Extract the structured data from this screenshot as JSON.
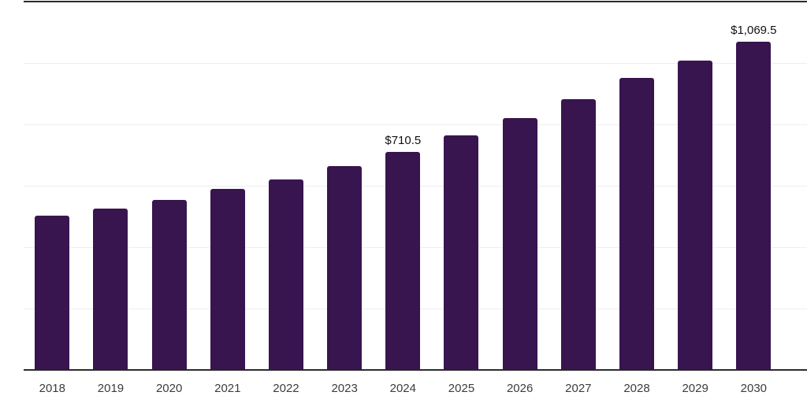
{
  "chart_data": {
    "type": "bar",
    "title": "",
    "xlabel": "",
    "ylabel": "",
    "categories": [
      "2018",
      "2019",
      "2020",
      "2021",
      "2022",
      "2023",
      "2024",
      "2025",
      "2026",
      "2027",
      "2028",
      "2029",
      "2030"
    ],
    "values": [
      501.9,
      525.8,
      553.2,
      589.1,
      621.4,
      665.0,
      710.5,
      765.1,
      820.7,
      882.3,
      950.7,
      1008.7,
      1069.5
    ],
    "value_labels": [
      "",
      "",
      "",
      "",
      "",
      "",
      "$710.5",
      "",
      "",
      "",
      "",
      "",
      "$1,069.5"
    ],
    "ylim": [
      0,
      1200
    ],
    "y_gridline_step": 200,
    "y_tick_labels": "none",
    "grid": "horizontal",
    "legend_position": "none"
  },
  "colors": {
    "bar": "#38154F",
    "axis_line": "#2b2b2b",
    "gridline": "#eeeeee",
    "value_label": "#111111",
    "tick_label": "#3c3c3c",
    "background": "#ffffff"
  }
}
